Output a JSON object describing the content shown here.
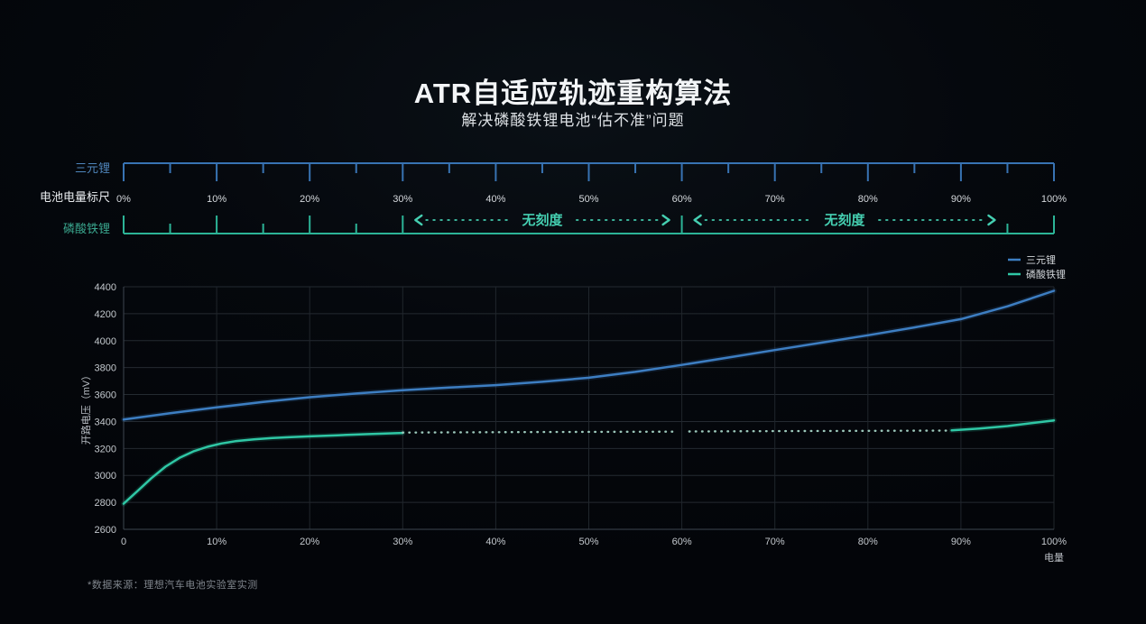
{
  "slide": {
    "title": "ATR自适应轨迹重构算法",
    "subtitle": "解决磷酸铁锂电池“估不准”问题",
    "footnote": "*数据来源：理想汽车电池实验室实测"
  },
  "ruler": {
    "axis_label": "电池电量标尺",
    "tick_labels": [
      "0%",
      "10%",
      "20%",
      "30%",
      "40%",
      "50%",
      "60%",
      "70%",
      "80%",
      "90%",
      "100%"
    ],
    "top": {
      "label": "三元锂",
      "color": "#3873b3",
      "label_color": "#4f86bc",
      "ticks_pct": [
        0,
        5,
        10,
        15,
        20,
        25,
        30,
        35,
        40,
        45,
        50,
        55,
        60,
        65,
        70,
        75,
        80,
        85,
        90,
        95,
        100
      ]
    },
    "bottom": {
      "label": "磷酸铁锂",
      "color": "#2cb497",
      "label_color": "#3aa78f",
      "ticks_pct": [
        0,
        5,
        10,
        15,
        20,
        25,
        30,
        60,
        95,
        100
      ],
      "no_scale_label": "无刻度",
      "no_scale_ranges": [
        [
          30,
          60
        ],
        [
          60,
          95
        ]
      ],
      "annotation_color": "#45cfb1"
    }
  },
  "chart_data": {
    "type": "line",
    "title": "",
    "xlabel": "电量",
    "ylabel": "开路电压（mV）",
    "xlim": [
      0,
      100
    ],
    "ylim": [
      2600,
      4400
    ],
    "x_ticks": [
      "0",
      "10%",
      "20%",
      "30%",
      "40%",
      "50%",
      "60%",
      "70%",
      "80%",
      "90%",
      "100%"
    ],
    "y_ticks": [
      2600,
      2800,
      3000,
      3200,
      3400,
      3600,
      3800,
      4000,
      4200,
      4400
    ],
    "grid": true,
    "legend_position": "top-right",
    "series": [
      {
        "name": "三元锂",
        "color": "#3d7ec2",
        "style": "solid",
        "x": [
          0,
          5,
          10,
          15,
          20,
          25,
          30,
          35,
          40,
          45,
          50,
          55,
          60,
          65,
          70,
          75,
          80,
          85,
          90,
          95,
          100
        ],
        "y": [
          3415,
          3462,
          3505,
          3545,
          3580,
          3608,
          3632,
          3652,
          3670,
          3695,
          3725,
          3768,
          3820,
          3875,
          3930,
          3985,
          4040,
          4098,
          4160,
          4255,
          4370
        ]
      },
      {
        "name": "磷酸铁锂",
        "color": "#2fc7a5",
        "dotted_color": "#9cc8bb",
        "segments": [
          {
            "style": "solid",
            "x": [
              0,
              1.5,
              3,
              4.5,
              6,
              7.5,
              9,
              10.5,
              12,
              14,
              16,
              18,
              20,
              23,
              26,
              30
            ],
            "y": [
              2790,
              2885,
              2980,
              3065,
              3130,
              3178,
              3212,
              3237,
              3254,
              3268,
              3277,
              3284,
              3290,
              3298,
              3306,
              3315
            ]
          },
          {
            "style": "dotted",
            "x": [
              30,
              45,
              59.2
            ],
            "y": [
              3318,
              3322,
              3325
            ]
          },
          {
            "style": "dotted",
            "x": [
              60.8,
              70,
              80,
              89
            ],
            "y": [
              3326,
              3329,
              3331,
              3333
            ]
          },
          {
            "style": "solid",
            "x": [
              89,
              92,
              95,
              100
            ],
            "y": [
              3334,
              3348,
              3366,
              3408
            ]
          }
        ]
      }
    ]
  }
}
